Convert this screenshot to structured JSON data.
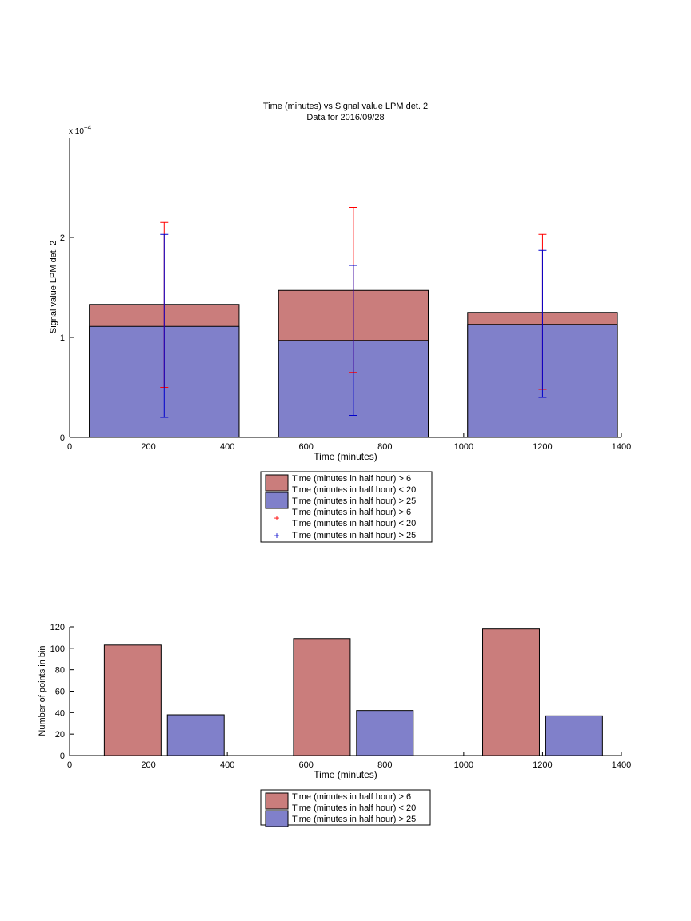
{
  "chart_data": [
    {
      "type": "bar",
      "title": "Time (minutes) vs Signal value LPM det. 2",
      "subtitle": "Data for 2016/09/28",
      "xlabel": "Time (minutes)",
      "ylabel": "Signal value LPM det. 2",
      "y_exponent_label": "x 10",
      "y_exponent_power": "−4",
      "xlim": [
        0,
        1400
      ],
      "ylim": [
        0,
        0.0003
      ],
      "xticks": [
        "0",
        "200",
        "400",
        "600",
        "800",
        "1000",
        "1200",
        "1400"
      ],
      "yticks": [
        "0",
        "1",
        "2"
      ],
      "ytick_values": [
        0,
        0.0001,
        0.0002
      ],
      "grid": false,
      "bars": {
        "x": [
          240,
          720,
          1200
        ],
        "width": 380,
        "series": [
          {
            "legend": [
              "Time (minutes in half hour) > 6",
              "Time (minutes in half hour) < 20"
            ],
            "color": "#ca7d7c",
            "values": [
              0.000133,
              0.000147,
              0.000125
            ]
          },
          {
            "legend": [
              "Time (minutes in half hour) > 25"
            ],
            "color": "#8080ca",
            "values": [
              0.000111,
              9.7e-05,
              0.000113
            ]
          }
        ]
      },
      "errorbars": [
        {
          "legend": [
            "Time (minutes in half hour) > 6",
            "Time (minutes in half hour) < 20"
          ],
          "color": "#ff0000",
          "x": [
            240,
            720,
            1200
          ],
          "lower": [
            5e-05,
            6.5e-05,
            4.8e-05
          ],
          "upper": [
            0.000215,
            0.00023,
            0.000203
          ]
        },
        {
          "legend": [
            "Time (minutes in half hour) > 25"
          ],
          "color": "#0000cc",
          "x": [
            240,
            720,
            1200
          ],
          "lower": [
            2e-05,
            2.2e-05,
            4e-05
          ],
          "upper": [
            0.000203,
            0.000172,
            0.000187
          ]
        }
      ],
      "legend_position": "below"
    },
    {
      "type": "bar",
      "xlabel": "Time (minutes)",
      "ylabel": "Number of points in bin",
      "xlim": [
        0,
        1400
      ],
      "ylim": [
        0,
        120
      ],
      "xticks": [
        "0",
        "200",
        "400",
        "600",
        "800",
        "1000",
        "1200",
        "1400"
      ],
      "yticks": [
        "0",
        "20",
        "40",
        "60",
        "80",
        "100",
        "120"
      ],
      "grid": false,
      "width": 144,
      "series": [
        {
          "legend": [
            "Time (minutes in half hour) > 6",
            "Time (minutes in half hour) < 20"
          ],
          "color": "#ca7d7c",
          "x": [
            160,
            640,
            1120
          ],
          "values": [
            103,
            109,
            118
          ]
        },
        {
          "legend": [
            "Time (minutes in half hour) > 25"
          ],
          "color": "#8080ca",
          "x": [
            320,
            800,
            1280
          ],
          "values": [
            38,
            42,
            37
          ]
        }
      ],
      "legend_position": "below"
    }
  ]
}
